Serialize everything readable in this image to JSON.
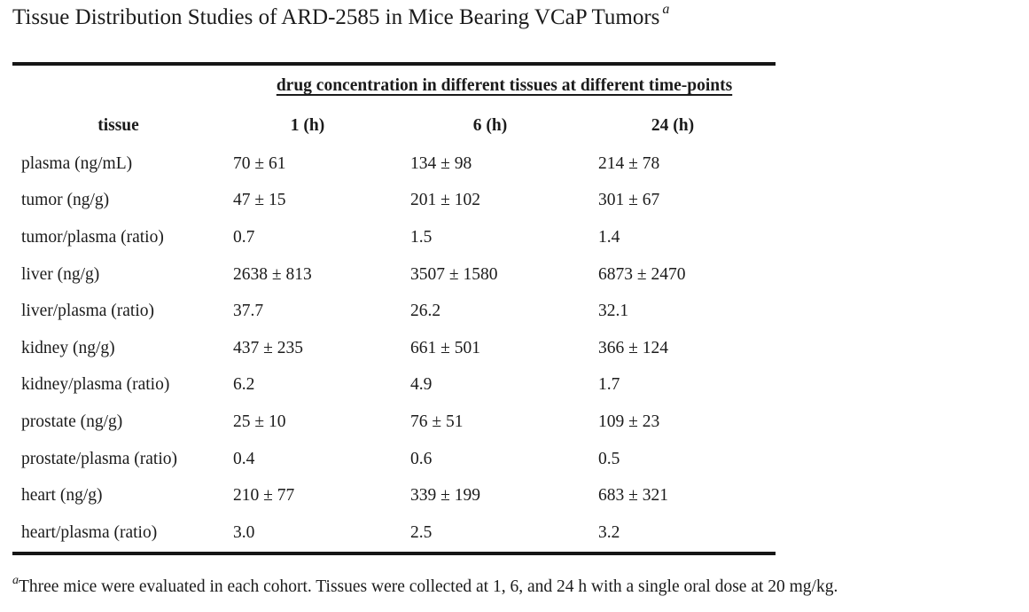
{
  "title": {
    "text": "Tissue Distribution Studies of ARD-2585 in Mice Bearing VCaP Tumors",
    "footnote_marker": "a"
  },
  "table": {
    "spanner": "drug concentration in different tissues at different time-points",
    "columns": [
      "tissue",
      "1 (h)",
      "6 (h)",
      "24 (h)"
    ],
    "rows": [
      {
        "tissue": "plasma (ng/mL)",
        "t1": "70 ± 61",
        "t6": "134 ± 98",
        "t24": "214 ± 78"
      },
      {
        "tissue": "tumor (ng/g)",
        "t1": "47 ± 15",
        "t6": "201 ± 102",
        "t24": "301 ± 67"
      },
      {
        "tissue": "tumor/plasma (ratio)",
        "t1": "0.7",
        "t6": "1.5",
        "t24": "1.4"
      },
      {
        "tissue": "liver (ng/g)",
        "t1": "2638 ± 813",
        "t6": "3507 ± 1580",
        "t24": "6873 ± 2470"
      },
      {
        "tissue": "liver/plasma (ratio)",
        "t1": "37.7",
        "t6": "26.2",
        "t24": "32.1"
      },
      {
        "tissue": "kidney (ng/g)",
        "t1": "437 ± 235",
        "t6": "661 ± 501",
        "t24": "366 ± 124"
      },
      {
        "tissue": "kidney/plasma (ratio)",
        "t1": "6.2",
        "t6": "4.9",
        "t24": "1.7"
      },
      {
        "tissue": "prostate (ng/g)",
        "t1": "25 ± 10",
        "t6": "76 ± 51",
        "t24": "109 ± 23"
      },
      {
        "tissue": "prostate/plasma (ratio)",
        "t1": "0.4",
        "t6": "0.6",
        "t24": "0.5"
      },
      {
        "tissue": "heart (ng/g)",
        "t1": "210 ± 77",
        "t6": "339 ± 199",
        "t24": "683 ± 321"
      },
      {
        "tissue": "heart/plasma (ratio)",
        "t1": "3.0",
        "t6": "2.5",
        "t24": "3.2"
      }
    ]
  },
  "footnote": {
    "marker": "a",
    "text": "Three mice were evaluated in each cohort. Tissues were collected at 1, 6, and 24 h with a single oral dose at 20 mg/kg."
  }
}
